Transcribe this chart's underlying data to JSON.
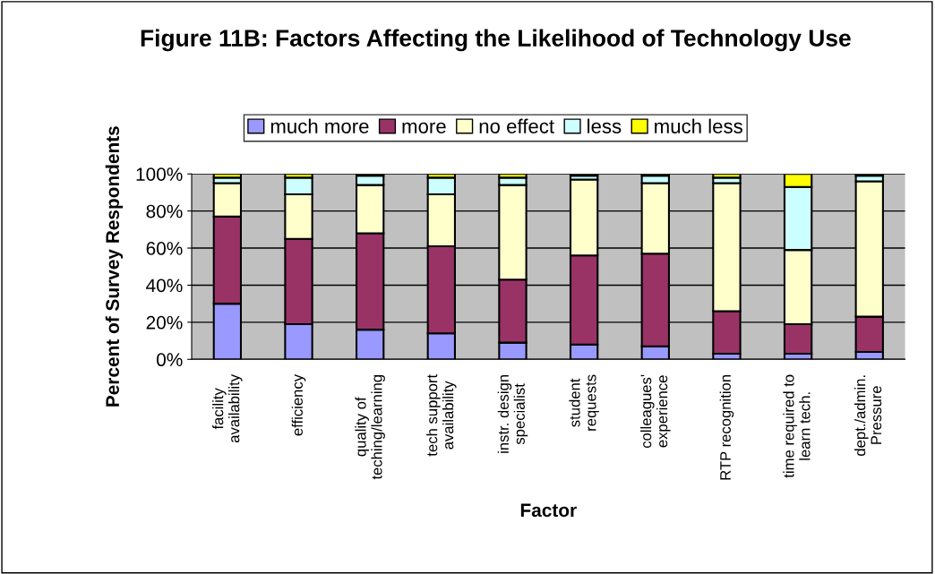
{
  "chart_data": {
    "type": "bar",
    "stacked": true,
    "title": "Figure 11B: Factors Affecting the Likelihood of Technology Use",
    "xlabel": "Factor",
    "ylabel": "Percent of Survey Respondents",
    "categories": [
      "facility\navailability",
      "efficiency",
      "quality of\nteching/learning",
      "tech support\navailability",
      "instr. design\nspecialist",
      "student\nrequests",
      "colleagues'\nexperience",
      "RTP recognition",
      "time required to\nlearn tech.",
      "dept./admin.\nPressure"
    ],
    "series": [
      {
        "name": "much more",
        "color": "#9999ff",
        "values": [
          30,
          19,
          16,
          14,
          9,
          8,
          7,
          3,
          3,
          4
        ]
      },
      {
        "name": "more",
        "color": "#993366",
        "values": [
          47,
          46,
          52,
          47,
          34,
          48,
          50,
          23,
          16,
          19
        ]
      },
      {
        "name": "no effect",
        "color": "#ffffcc",
        "values": [
          18,
          24,
          26,
          28,
          51,
          41,
          38,
          69,
          40,
          73
        ]
      },
      {
        "name": "less",
        "color": "#ccffff",
        "values": [
          3,
          9,
          5,
          9,
          4,
          2,
          4,
          3,
          34,
          3
        ]
      },
      {
        "name": "much less",
        "color": "#ffff00",
        "values": [
          2,
          2,
          1,
          2,
          2,
          1,
          1,
          2,
          7,
          1
        ]
      }
    ],
    "ylim": [
      0,
      100
    ],
    "yticks": [
      {
        "value": 0,
        "label": "0%"
      },
      {
        "value": 20,
        "label": "20%"
      },
      {
        "value": 40,
        "label": "40%"
      },
      {
        "value": 60,
        "label": "60%"
      },
      {
        "value": 80,
        "label": "80%"
      },
      {
        "value": 100,
        "label": "100%"
      }
    ],
    "grid": "y",
    "legend": "top"
  }
}
